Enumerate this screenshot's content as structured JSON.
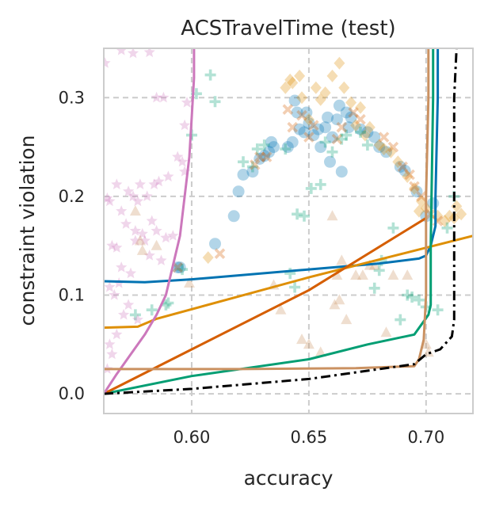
{
  "chart_data": {
    "type": "scatter",
    "title": "ACSTravelTime (test)",
    "xlabel": "accuracy",
    "ylabel": "constraint violation",
    "xlim": [
      0.5625,
      0.72
    ],
    "ylim": [
      -0.02,
      0.35
    ],
    "xticks": [
      0.6,
      0.65,
      0.7
    ],
    "xtick_labels": [
      "0.60",
      "0.65",
      "0.70"
    ],
    "yticks": [
      0.0,
      0.1,
      0.2,
      0.3
    ],
    "ytick_labels": [
      "0.0",
      "0.1",
      "0.2",
      "0.3"
    ],
    "grid": true,
    "legend": "none",
    "colors": {
      "blue": "#0173b2",
      "orange": "#de8f05",
      "green": "#029e73",
      "red": "#d55e00",
      "pink": "#cc78bc",
      "tan": "#ca9161",
      "black": "#000000"
    },
    "scatter_series": [
      {
        "marker": "circle",
        "color": "#0173b2",
        "points": [
          [
            0.595,
            0.128
          ],
          [
            0.594,
            0.128
          ],
          [
            0.61,
            0.152
          ],
          [
            0.618,
            0.18
          ],
          [
            0.622,
            0.222
          ],
          [
            0.62,
            0.205
          ],
          [
            0.626,
            0.225
          ],
          [
            0.629,
            0.238
          ],
          [
            0.631,
            0.241
          ],
          [
            0.633,
            0.245
          ],
          [
            0.634,
            0.255
          ],
          [
            0.635,
            0.25
          ],
          [
            0.641,
            0.25
          ],
          [
            0.643,
            0.255
          ],
          [
            0.644,
            0.297
          ],
          [
            0.645,
            0.285
          ],
          [
            0.646,
            0.268
          ],
          [
            0.648,
            0.265
          ],
          [
            0.649,
            0.285
          ],
          [
            0.65,
            0.274
          ],
          [
            0.652,
            0.262
          ],
          [
            0.654,
            0.268
          ],
          [
            0.655,
            0.25
          ],
          [
            0.657,
            0.27
          ],
          [
            0.658,
            0.28
          ],
          [
            0.659,
            0.235
          ],
          [
            0.66,
            0.26
          ],
          [
            0.662,
            0.278
          ],
          [
            0.663,
            0.292
          ],
          [
            0.664,
            0.225
          ],
          [
            0.666,
            0.285
          ],
          [
            0.667,
            0.27
          ],
          [
            0.668,
            0.28
          ],
          [
            0.672,
            0.268
          ],
          [
            0.675,
            0.265
          ],
          [
            0.678,
            0.26
          ],
          [
            0.68,
            0.25
          ],
          [
            0.683,
            0.245
          ],
          [
            0.689,
            0.23
          ],
          [
            0.691,
            0.226
          ],
          [
            0.696,
            0.205
          ],
          [
            0.7,
            0.18
          ],
          [
            0.703,
            0.193
          ]
        ]
      },
      {
        "marker": "diamond",
        "color": "#de8f05",
        "points": [
          [
            0.607,
            0.138
          ],
          [
            0.64,
            0.31
          ],
          [
            0.642,
            0.318
          ],
          [
            0.643,
            0.315
          ],
          [
            0.647,
            0.3
          ],
          [
            0.646,
            0.322
          ],
          [
            0.65,
            0.278
          ],
          [
            0.653,
            0.31
          ],
          [
            0.655,
            0.298
          ],
          [
            0.657,
            0.305
          ],
          [
            0.66,
            0.322
          ],
          [
            0.663,
            0.335
          ],
          [
            0.665,
            0.31
          ],
          [
            0.668,
            0.295
          ],
          [
            0.672,
            0.29
          ],
          [
            0.676,
            0.27
          ],
          [
            0.67,
            0.272
          ],
          [
            0.674,
            0.262
          ],
          [
            0.68,
            0.252
          ],
          [
            0.682,
            0.248
          ],
          [
            0.685,
            0.245
          ],
          [
            0.688,
            0.235
          ],
          [
            0.692,
            0.22
          ],
          [
            0.695,
            0.208
          ],
          [
            0.698,
            0.195
          ],
          [
            0.697,
            0.185
          ],
          [
            0.7,
            0.188
          ],
          [
            0.705,
            0.18
          ],
          [
            0.708,
            0.175
          ],
          [
            0.71,
            0.18
          ],
          [
            0.713,
            0.19
          ],
          [
            0.712,
            0.178
          ],
          [
            0.715,
            0.182
          ]
        ]
      },
      {
        "marker": "plus",
        "color": "#029e73",
        "points": [
          [
            0.576,
            0.08
          ],
          [
            0.583,
            0.085
          ],
          [
            0.589,
            0.09
          ],
          [
            0.59,
            0.092
          ],
          [
            0.596,
            0.126
          ],
          [
            0.6,
            0.262
          ],
          [
            0.602,
            0.304
          ],
          [
            0.608,
            0.323
          ],
          [
            0.61,
            0.296
          ],
          [
            0.622,
            0.235
          ],
          [
            0.626,
            0.23
          ],
          [
            0.628,
            0.248
          ],
          [
            0.631,
            0.252
          ],
          [
            0.64,
            0.248
          ],
          [
            0.642,
            0.122
          ],
          [
            0.644,
            0.108
          ],
          [
            0.645,
            0.182
          ],
          [
            0.648,
            0.18
          ],
          [
            0.651,
            0.208
          ],
          [
            0.655,
            0.212
          ],
          [
            0.657,
            0.255
          ],
          [
            0.66,
            0.245
          ],
          [
            0.664,
            0.258
          ],
          [
            0.666,
            0.262
          ],
          [
            0.672,
            0.265
          ],
          [
            0.675,
            0.252
          ],
          [
            0.678,
            0.107
          ],
          [
            0.68,
            0.125
          ],
          [
            0.681,
            0.135
          ],
          [
            0.686,
            0.168
          ],
          [
            0.689,
            0.075
          ],
          [
            0.692,
            0.1
          ],
          [
            0.694,
            0.098
          ],
          [
            0.697,
            0.095
          ],
          [
            0.7,
            0.088
          ],
          [
            0.705,
            0.085
          ],
          [
            0.709,
            0.168
          ],
          [
            0.712,
            0.2
          ]
        ]
      },
      {
        "marker": "cross",
        "color": "#d55e00",
        "points": [
          [
            0.594,
            0.128
          ],
          [
            0.612,
            0.142
          ],
          [
            0.627,
            0.232
          ],
          [
            0.629,
            0.24
          ],
          [
            0.632,
            0.24
          ],
          [
            0.641,
            0.288
          ],
          [
            0.643,
            0.27
          ],
          [
            0.647,
            0.282
          ],
          [
            0.65,
            0.26
          ],
          [
            0.652,
            0.272
          ],
          [
            0.662,
            0.258
          ],
          [
            0.664,
            0.27
          ],
          [
            0.669,
            0.285
          ],
          [
            0.672,
            0.278
          ],
          [
            0.682,
            0.26
          ],
          [
            0.686,
            0.25
          ],
          [
            0.69,
            0.23
          ],
          [
            0.693,
            0.222
          ],
          [
            0.695,
            0.21
          ],
          [
            0.698,
            0.2
          ],
          [
            0.702,
            0.182
          ],
          [
            0.705,
            0.175
          ]
        ]
      },
      {
        "marker": "star",
        "color": "#cc78bc",
        "points": [
          [
            0.563,
            0.335
          ],
          [
            0.57,
            0.348
          ],
          [
            0.575,
            0.345
          ],
          [
            0.582,
            0.346
          ],
          [
            0.585,
            0.3
          ],
          [
            0.588,
            0.3
          ],
          [
            0.598,
            0.295
          ],
          [
            0.597,
            0.272
          ],
          [
            0.594,
            0.24
          ],
          [
            0.596,
            0.235
          ],
          [
            0.597,
            0.225
          ],
          [
            0.59,
            0.22
          ],
          [
            0.586,
            0.215
          ],
          [
            0.584,
            0.212
          ],
          [
            0.573,
            0.205
          ],
          [
            0.568,
            0.212
          ],
          [
            0.578,
            0.212
          ],
          [
            0.575,
            0.2
          ],
          [
            0.577,
            0.195
          ],
          [
            0.581,
            0.2
          ],
          [
            0.565,
            0.195
          ],
          [
            0.564,
            0.198
          ],
          [
            0.57,
            0.185
          ],
          [
            0.572,
            0.172
          ],
          [
            0.583,
            0.175
          ],
          [
            0.576,
            0.165
          ],
          [
            0.579,
            0.162
          ],
          [
            0.585,
            0.165
          ],
          [
            0.589,
            0.158
          ],
          [
            0.592,
            0.16
          ],
          [
            0.566,
            0.15
          ],
          [
            0.568,
            0.148
          ],
          [
            0.57,
            0.128
          ],
          [
            0.576,
            0.155
          ],
          [
            0.58,
            0.155
          ],
          [
            0.582,
            0.14
          ],
          [
            0.587,
            0.135
          ],
          [
            0.574,
            0.122
          ],
          [
            0.569,
            0.112
          ],
          [
            0.565,
            0.108
          ],
          [
            0.567,
            0.1
          ],
          [
            0.573,
            0.09
          ],
          [
            0.571,
            0.08
          ],
          [
            0.577,
            0.075
          ],
          [
            0.568,
            0.06
          ],
          [
            0.565,
            0.05
          ],
          [
            0.566,
            0.04
          ],
          [
            0.564,
            0.025
          ]
        ]
      },
      {
        "marker": "triangle",
        "color": "#ca9161",
        "points": [
          [
            0.576,
            0.185
          ],
          [
            0.578,
            0.155
          ],
          [
            0.579,
            0.145
          ],
          [
            0.585,
            0.15
          ],
          [
            0.599,
            0.112
          ],
          [
            0.635,
            0.11
          ],
          [
            0.638,
            0.085
          ],
          [
            0.647,
            0.055
          ],
          [
            0.65,
            0.05
          ],
          [
            0.655,
            0.042
          ],
          [
            0.66,
            0.18
          ],
          [
            0.661,
            0.09
          ],
          [
            0.662,
            0.12
          ],
          [
            0.663,
            0.095
          ],
          [
            0.664,
            0.135
          ],
          [
            0.666,
            0.075
          ],
          [
            0.67,
            0.12
          ],
          [
            0.673,
            0.12
          ],
          [
            0.676,
            0.13
          ],
          [
            0.678,
            0.13
          ],
          [
            0.683,
            0.062
          ],
          [
            0.686,
            0.12
          ],
          [
            0.692,
            0.12
          ],
          [
            0.7,
            0.05
          ],
          [
            0.701,
            0.042
          ]
        ]
      }
    ],
    "line_series": [
      {
        "color": "#000000",
        "dash": "dashdot",
        "points": [
          [
            0.5625,
            0.0
          ],
          [
            0.6,
            0.005
          ],
          [
            0.65,
            0.015
          ],
          [
            0.68,
            0.025
          ],
          [
            0.695,
            0.03
          ],
          [
            0.7,
            0.04
          ],
          [
            0.706,
            0.045
          ],
          [
            0.711,
            0.058
          ],
          [
            0.712,
            0.075
          ],
          [
            0.712,
            0.1
          ],
          [
            0.712,
            0.2
          ],
          [
            0.712,
            0.3
          ],
          [
            0.713,
            0.35
          ]
        ]
      },
      {
        "color": "#0173b2",
        "dash": "solid",
        "points": [
          [
            0.5625,
            0.114
          ],
          [
            0.58,
            0.113
          ],
          [
            0.6,
            0.116
          ],
          [
            0.65,
            0.126
          ],
          [
            0.68,
            0.132
          ],
          [
            0.697,
            0.137
          ],
          [
            0.7,
            0.14
          ],
          [
            0.702,
            0.15
          ],
          [
            0.704,
            0.17
          ],
          [
            0.704,
            0.2
          ],
          [
            0.705,
            0.3
          ],
          [
            0.705,
            0.35
          ]
        ]
      },
      {
        "color": "#de8f05",
        "dash": "solid",
        "points": [
          [
            0.5625,
            0.067
          ],
          [
            0.577,
            0.068
          ],
          [
            0.585,
            0.076
          ],
          [
            0.65,
            0.118
          ],
          [
            0.69,
            0.142
          ],
          [
            0.72,
            0.16
          ]
        ]
      },
      {
        "color": "#029e73",
        "dash": "solid",
        "points": [
          [
            0.5625,
            0.0
          ],
          [
            0.6,
            0.018
          ],
          [
            0.65,
            0.035
          ],
          [
            0.675,
            0.05
          ],
          [
            0.695,
            0.06
          ],
          [
            0.701,
            0.08
          ],
          [
            0.702,
            0.09
          ],
          [
            0.702,
            0.15
          ],
          [
            0.703,
            0.3
          ],
          [
            0.703,
            0.35
          ]
        ]
      },
      {
        "color": "#d55e00",
        "dash": "solid",
        "points": [
          [
            0.5625,
            0.0
          ],
          [
            0.6,
            0.045
          ],
          [
            0.65,
            0.105
          ],
          [
            0.7,
            0.178
          ]
        ]
      },
      {
        "color": "#cc78bc",
        "dash": "solid",
        "points": [
          [
            0.5625,
            0.0
          ],
          [
            0.568,
            0.02
          ],
          [
            0.574,
            0.04
          ],
          [
            0.58,
            0.06
          ],
          [
            0.585,
            0.08
          ],
          [
            0.589,
            0.1
          ],
          [
            0.592,
            0.13
          ],
          [
            0.595,
            0.16
          ],
          [
            0.597,
            0.2
          ],
          [
            0.599,
            0.24
          ],
          [
            0.6,
            0.28
          ],
          [
            0.601,
            0.32
          ],
          [
            0.601,
            0.35
          ]
        ]
      },
      {
        "color": "#ca9161",
        "dash": "solid",
        "points": [
          [
            0.5625,
            0.025
          ],
          [
            0.62,
            0.025
          ],
          [
            0.67,
            0.026
          ],
          [
            0.695,
            0.028
          ],
          [
            0.697,
            0.035
          ],
          [
            0.699,
            0.055
          ],
          [
            0.7,
            0.1
          ],
          [
            0.7,
            0.2
          ],
          [
            0.701,
            0.3
          ],
          [
            0.701,
            0.35
          ]
        ]
      }
    ]
  }
}
